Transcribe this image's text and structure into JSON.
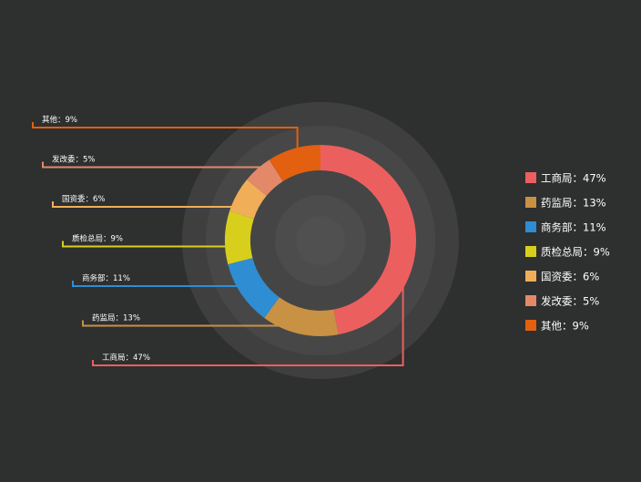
{
  "chart_data": {
    "type": "pie",
    "subtype": "donut",
    "title": "",
    "categories": [
      "工商局",
      "药监局",
      "商务部",
      "质检总局",
      "国资委",
      "发改委",
      "其他"
    ],
    "values": [
      47,
      13,
      11,
      9,
      6,
      5,
      9
    ],
    "unit": "%",
    "label_separator": "：",
    "labels": [
      "工商局：47%",
      "药监局：13%",
      "商务部：11%",
      "质检总局：9%",
      "国资委：6%",
      "发改委：5%",
      "其他：9%"
    ],
    "colors": [
      "#ec5f5f",
      "#c99143",
      "#2e8dd3",
      "#d8cf1c",
      "#f0ae59",
      "#e3896a",
      "#e2600f"
    ],
    "legend": {
      "position": "right"
    },
    "background": "#2e2f2f"
  }
}
